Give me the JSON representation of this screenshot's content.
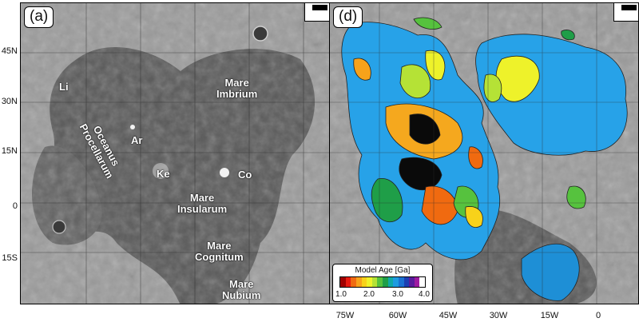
{
  "panels": {
    "a": {
      "tag": "(a)",
      "labels": {
        "li": "Li",
        "oceanus": "Oceanus\nProcellarum",
        "ar": "Ar",
        "ke": "Ke",
        "co": "Co",
        "imbrium": "Mare\nImbrium",
        "insularum": "Mare\nInsularum",
        "cognitum": "Mare\nCognitum",
        "nubium": "Mare\nNubium"
      }
    },
    "d": {
      "tag": "(d)"
    }
  },
  "latitude_labels": [
    "45N",
    "30N",
    "15N",
    "0",
    "15S"
  ],
  "longitude_labels": [
    "75W",
    "60W",
    "45W",
    "30W",
    "15W",
    "0"
  ],
  "colorbar": {
    "title": "Model Age [Ga]",
    "ticks": [
      "1.0",
      "2.0",
      "3.0",
      "4.0"
    ],
    "colors": [
      "#a00000",
      "#e81a10",
      "#f06a10",
      "#f7a21a",
      "#f7d21a",
      "#eef22a",
      "#b5e236",
      "#56c23e",
      "#1f9e48",
      "#10a9a6",
      "#1e9be0",
      "#1b71d2",
      "#1c3fb2",
      "#5a1a9c",
      "#9e1aa0",
      "#ffffff"
    ]
  },
  "colors": {
    "mare": "#4a4a4a",
    "highland": "#9a9a9a",
    "youngest_unit": "#f5a81e",
    "oldest_unit": "#27a2e8"
  }
}
